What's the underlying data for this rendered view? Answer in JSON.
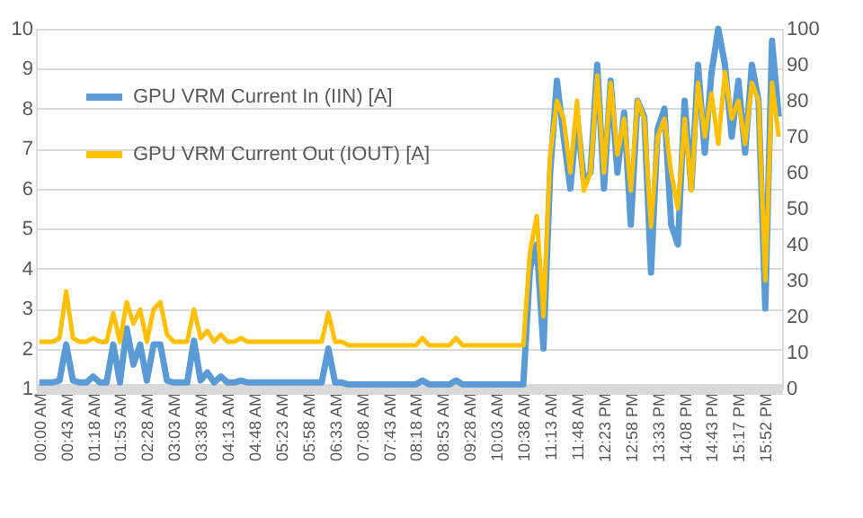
{
  "chart_data": {
    "type": "line",
    "categories": [
      "00:00 AM",
      null,
      null,
      null,
      "00:43 AM",
      null,
      null,
      null,
      "01:18 AM",
      null,
      null,
      null,
      "01:53 AM",
      null,
      null,
      null,
      "02:28 AM",
      null,
      null,
      null,
      "03:03 AM",
      null,
      null,
      null,
      "03:38 AM",
      null,
      null,
      null,
      "04:13 AM",
      null,
      null,
      null,
      "04:48 AM",
      null,
      null,
      null,
      "05:23 AM",
      null,
      null,
      null,
      "05:58 AM",
      null,
      null,
      null,
      "06:33 AM",
      null,
      null,
      null,
      "07:08 AM",
      null,
      null,
      null,
      "07:43 AM",
      null,
      null,
      null,
      "08:18 AM",
      null,
      null,
      null,
      "08:53 AM",
      null,
      null,
      null,
      "09:28 AM",
      null,
      null,
      null,
      "10:03 AM",
      null,
      null,
      null,
      "10:38 AM",
      null,
      null,
      null,
      "11:13 AM",
      null,
      null,
      null,
      "11:48 AM",
      null,
      null,
      null,
      "12:23 PM",
      null,
      null,
      null,
      "12:58 PM",
      null,
      null,
      null,
      "13:33 PM",
      null,
      null,
      null,
      "14:08 PM",
      null,
      null,
      null,
      "14:43 PM",
      null,
      null,
      null,
      "15:17 PM",
      null,
      null,
      null,
      "15:52 PM",
      null,
      null
    ],
    "series": [
      {
        "name": "GPU VRM Current In (IIN) [A]",
        "color": "#5b9bd5",
        "values": [
          1.15,
          1.15,
          1.15,
          1.2,
          2.1,
          1.2,
          1.15,
          1.15,
          1.3,
          1.15,
          1.15,
          2.1,
          1.15,
          2.5,
          1.6,
          2.1,
          1.2,
          2.1,
          2.1,
          1.2,
          1.15,
          1.15,
          1.15,
          2.2,
          1.2,
          1.4,
          1.15,
          1.3,
          1.15,
          1.15,
          1.2,
          1.15,
          1.15,
          1.15,
          1.15,
          1.15,
          1.15,
          1.15,
          1.15,
          1.15,
          1.15,
          1.15,
          1.15,
          2.0,
          1.15,
          1.15,
          1.1,
          1.1,
          1.1,
          1.1,
          1.1,
          1.1,
          1.1,
          1.1,
          1.1,
          1.1,
          1.1,
          1.2,
          1.1,
          1.1,
          1.1,
          1.1,
          1.2,
          1.1,
          1.1,
          1.1,
          1.1,
          1.1,
          1.1,
          1.1,
          1.1,
          1.1,
          1.1,
          4.0,
          4.6,
          2.0,
          6.4,
          8.7,
          7.3,
          6.0,
          7.8,
          6.2,
          6.4,
          9.1,
          6.0,
          8.7,
          6.4,
          7.9,
          5.1,
          8.2,
          7.8,
          3.9,
          7.5,
          8.0,
          5.1,
          4.6,
          8.2,
          6.0,
          9.1,
          6.9,
          8.9,
          10.0,
          9.1,
          7.3,
          8.7,
          6.9,
          9.1,
          8.2,
          3.0,
          9.7,
          7.8
        ]
      },
      {
        "name": "GPU VRM Current Out (IOUT) [A]",
        "color": "#ffc000",
        "axis": "y2",
        "values": [
          13,
          13,
          13,
          14,
          27,
          14,
          13,
          13,
          14,
          13,
          13,
          21,
          13,
          24,
          18,
          22,
          13,
          22,
          24,
          15,
          13,
          13,
          13,
          22,
          14,
          16,
          13,
          15,
          13,
          13,
          14,
          13,
          13,
          13,
          13,
          13,
          13,
          13,
          13,
          13,
          13,
          13,
          13,
          21,
          13,
          13,
          12,
          12,
          12,
          12,
          12,
          12,
          12,
          12,
          12,
          12,
          12,
          14,
          12,
          12,
          12,
          12,
          14,
          12,
          12,
          12,
          12,
          12,
          12,
          12,
          12,
          12,
          12,
          38,
          48,
          20,
          65,
          80,
          75,
          60,
          80,
          55,
          60,
          87,
          60,
          85,
          65,
          75,
          55,
          80,
          75,
          45,
          70,
          75,
          60,
          50,
          75,
          55,
          85,
          70,
          82,
          68,
          88,
          75,
          80,
          68,
          85,
          80,
          30,
          85,
          70
        ]
      }
    ],
    "ylim": [
      1,
      10
    ],
    "yticks": [
      1,
      2,
      3,
      4,
      5,
      6,
      7,
      8,
      9,
      10
    ],
    "y2lim": [
      0,
      100
    ],
    "y2ticks": [
      0,
      10,
      20,
      30,
      40,
      50,
      60,
      70,
      80,
      90,
      100
    ],
    "grid": "y",
    "legend": "top left",
    "marker": "none",
    "line_style": "solid"
  }
}
